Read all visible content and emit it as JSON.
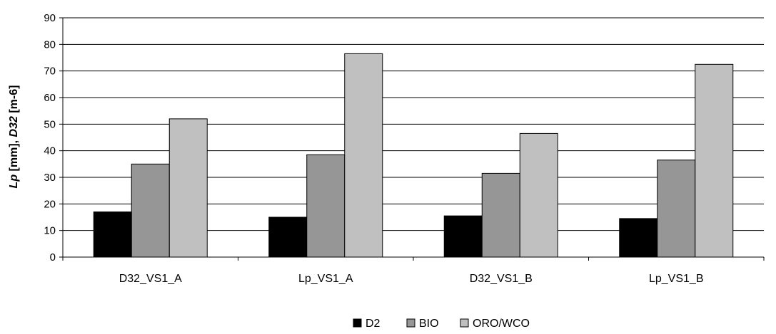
{
  "chart_data": {
    "type": "bar",
    "categories": [
      "D32_VS1_A",
      "Lp_VS1_A",
      "D32_VS1_B",
      "Lp_VS1_B"
    ],
    "series": [
      {
        "name": "D2",
        "values": [
          17,
          15,
          15.5,
          14.5
        ],
        "color": "#000000"
      },
      {
        "name": "BIO",
        "values": [
          35,
          38.5,
          31.5,
          36.5
        ],
        "color": "#969696"
      },
      {
        "name": "ORO/WCO",
        "values": [
          52,
          76.5,
          46.5,
          72.5
        ],
        "color": "#c0c0c0"
      }
    ],
    "title": "",
    "xlabel": "",
    "ylabel": {
      "italic_lp": "Lp",
      "mm": " [mm], ",
      "italic_d32": "D32",
      "unit": " [m-6]"
    },
    "ylim": [
      0,
      90
    ],
    "yticks": [
      "0",
      "10",
      "20",
      "30",
      "40",
      "50",
      "60",
      "70",
      "80",
      "90"
    ],
    "grid": true,
    "legend_position": "bottom-center"
  }
}
